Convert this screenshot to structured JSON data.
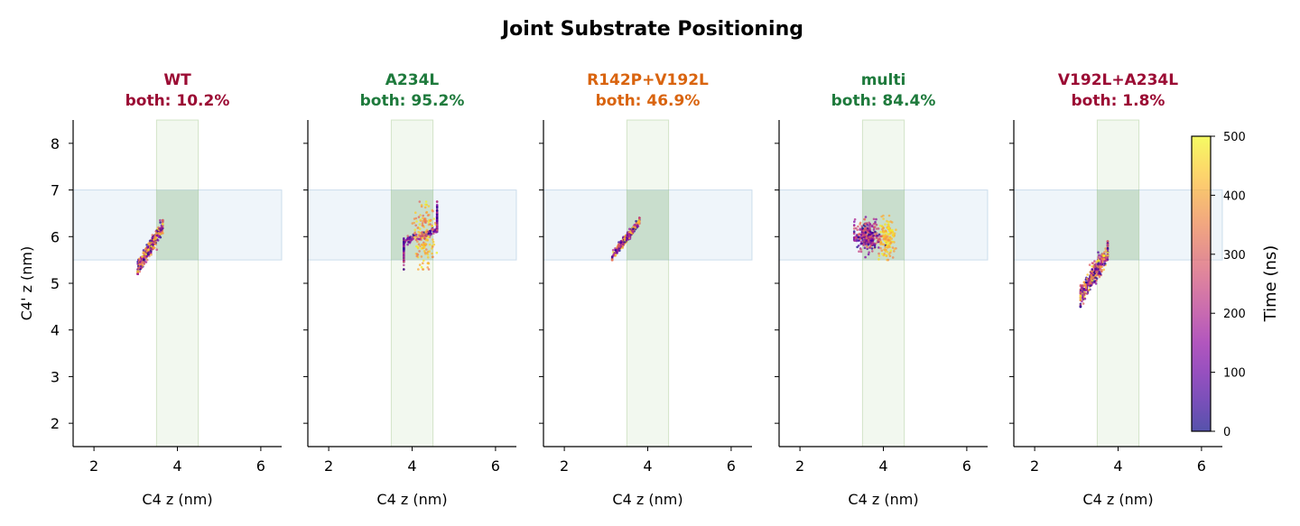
{
  "figure": {
    "title": "Joint Substrate Positioning"
  },
  "chart_data": {
    "type": "scatter",
    "title": "Joint Substrate Positioning",
    "xlabel": "C4  z (nm)",
    "ylabel": "C4'  z (nm)",
    "xlim": [
      1.5,
      6.5
    ],
    "ylim": [
      1.5,
      8.5
    ],
    "xticks": [
      "2",
      "4",
      "6"
    ],
    "yticks": [
      "2",
      "3",
      "4",
      "5",
      "6",
      "7",
      "8"
    ],
    "x_window": [
      3.5,
      4.5
    ],
    "y_window": [
      5.5,
      7.0
    ],
    "colorbar": {
      "label": "Time (ns)",
      "ticks": [
        "0",
        "100",
        "200",
        "300",
        "400",
        "500"
      ],
      "range": [
        0,
        500
      ],
      "colormap": "plasma"
    },
    "panels": [
      {
        "name": "WT",
        "both_label": "both: 10.2%",
        "color": "#9b0c34",
        "cluster": {
          "x_range": [
            3.05,
            3.65
          ],
          "y_range": [
            5.2,
            6.35
          ],
          "tilt": 1.6,
          "spread": 0.1
        }
      },
      {
        "name": "A234L",
        "both_label": "both: 95.2%",
        "color": "#1e7a3c",
        "cluster": {
          "x_range": [
            3.8,
            4.6
          ],
          "y_range": [
            5.3,
            6.75
          ],
          "tilt": 0.3,
          "spread": 0.3
        }
      },
      {
        "name": "R142P+V192L",
        "both_label": "both: 46.9%",
        "color": "#d9640f",
        "cluster": {
          "x_range": [
            3.15,
            3.8
          ],
          "y_range": [
            5.5,
            6.4
          ],
          "tilt": 1.2,
          "spread": 0.07
        }
      },
      {
        "name": "multi",
        "both_label": "both: 84.4%",
        "color": "#1e7a3c",
        "cluster": {
          "x_range": [
            3.3,
            4.3
          ],
          "y_range": [
            5.5,
            6.45
          ],
          "tilt": 0.1,
          "spread": 0.25
        }
      },
      {
        "name": "V192L+A234L",
        "both_label": "both: 1.8%",
        "color": "#9b0c34",
        "cluster": {
          "x_range": [
            3.1,
            3.75
          ],
          "y_range": [
            4.5,
            5.9
          ],
          "tilt": 1.5,
          "spread": 0.15
        }
      }
    ]
  }
}
